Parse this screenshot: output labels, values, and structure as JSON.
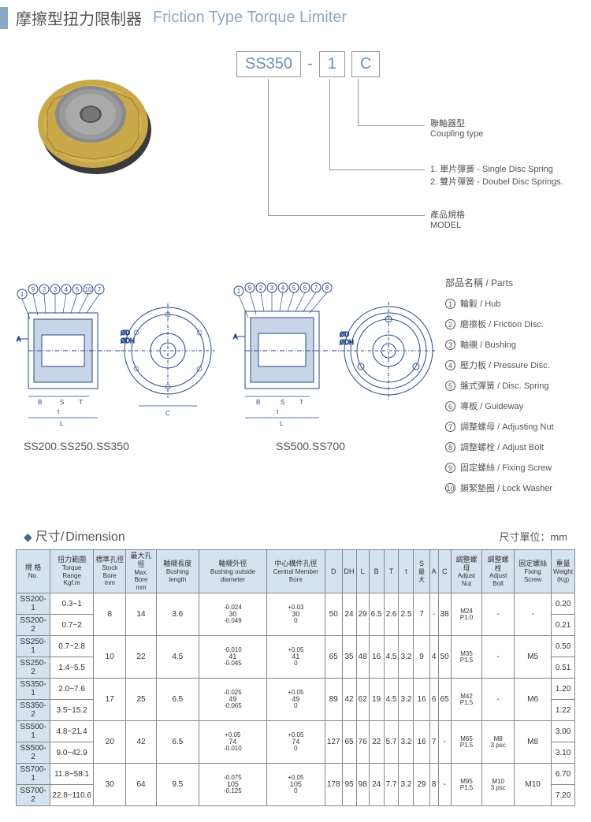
{
  "header": {
    "title_cn": "摩擦型扭力限制器",
    "title_en": "Friction Type Torque Limiter"
  },
  "model": {
    "part1": "SS350",
    "dash": "-",
    "part2": "1",
    "part3": "C",
    "label_coupling_cn": "聯軸器型",
    "label_coupling_en": "Coupling type",
    "label_spring_1": "1. 單片彈簧 - Single Disc Spring",
    "label_spring_2": "2. 雙片彈簧 - Doubel Disc Springs.",
    "label_model_cn": "產品規格",
    "label_model_en": "MODEL"
  },
  "diagrams": {
    "caption1": "SS200.SS250.SS350",
    "caption2": "SS500.SS700",
    "callouts1": [
      "1",
      "9",
      "2",
      "3",
      "4",
      "5",
      "10",
      "7"
    ],
    "callouts2": [
      "1",
      "9",
      "2",
      "3",
      "4",
      "5",
      "6",
      "7",
      "8"
    ]
  },
  "parts": {
    "title": "部品名稱 / Parts",
    "items": [
      {
        "num": "1",
        "cn": "輪轂",
        "en": "Hub"
      },
      {
        "num": "2",
        "cn": "磨擦板",
        "en": "Friction Disc."
      },
      {
        "num": "3",
        "cn": "軸襯",
        "en": "Bushing"
      },
      {
        "num": "4",
        "cn": "壓力板",
        "en": "Pressure Disc."
      },
      {
        "num": "5",
        "cn": "盤式彈簧",
        "en": "Disc. Spring"
      },
      {
        "num": "6",
        "cn": "導板",
        "en": "Guideway"
      },
      {
        "num": "7",
        "cn": "調整螺母",
        "en": "Adjusting Nut"
      },
      {
        "num": "8",
        "cn": "調整螺栓",
        "en": "Adjust Bolt"
      },
      {
        "num": "9",
        "cn": "固定螺絲",
        "en": "Fixing Screw"
      },
      {
        "num": "10",
        "cn": "鎖緊墊圈",
        "en": "Lock Washer"
      }
    ]
  },
  "dimension": {
    "bullet": "◆",
    "title_cn": "尺寸/",
    "title_en": "Dimension",
    "unit": "尺寸單位：mm",
    "columns": [
      {
        "cn": "規 格",
        "en": "No."
      },
      {
        "cn": "扭力範圍",
        "en": "Torque Range",
        "sub": "Kgf.m"
      },
      {
        "cn": "標準孔徑",
        "en": "Stock Bore",
        "sub": "mm"
      },
      {
        "cn": "最大孔徑",
        "en": "Max. Bore",
        "sub": "mm"
      },
      {
        "cn": "軸襯長度",
        "en": "Bushing length"
      },
      {
        "cn": "軸襯外徑",
        "en": "Bushing outside diameter"
      },
      {
        "cn": "中心構件孔徑",
        "en": "Central Member Bore"
      },
      {
        "cn": "D"
      },
      {
        "cn": "DH"
      },
      {
        "cn": "L"
      },
      {
        "cn": "B"
      },
      {
        "cn": "T"
      },
      {
        "cn": "t"
      },
      {
        "cn": "S",
        "sub": "最大"
      },
      {
        "cn": "A"
      },
      {
        "cn": "C"
      },
      {
        "cn": "調整螺母",
        "en": "Adjust Nut"
      },
      {
        "cn": "調整螺栓",
        "en": "Adjust Bolt"
      },
      {
        "cn": "固定螺絲",
        "en": "Fixing Screw"
      },
      {
        "cn": "重量",
        "en": "Weight",
        "sub": "(Kg)"
      }
    ],
    "rows": [
      {
        "no": "SS200-1",
        "tr": "0.3~1",
        "sb": "8",
        "mb": "14",
        "bl": "3.6",
        "bod_t": "-0.024",
        "bod_b": "30",
        "bod_b2": "-0.049",
        "cmb_t": "+0.03",
        "cmb_b": "30",
        "cmb_b2": "0",
        "D": "50",
        "DH": "24",
        "L": "29",
        "B": "6.5",
        "T": "2.6",
        "t": "2.5",
        "S": "7",
        "A": "-",
        "C": "38",
        "an_t": "M24",
        "an_b": "P1.0",
        "ab": "-",
        "fs": "-",
        "w": "0.20"
      },
      {
        "no": "SS200-2",
        "tr": "0.7~2",
        "w": "0.21"
      },
      {
        "no": "SS250-1",
        "tr": "0.7~2.8",
        "sb": "10",
        "mb": "22",
        "bl": "4.5",
        "bod_t": "-0.010",
        "bod_b": "41",
        "bod_b2": "-0.045",
        "cmb_t": "+0.05",
        "cmb_b": "41",
        "cmb_b2": "0",
        "D": "65",
        "DH": "35",
        "L": "48",
        "B": "16",
        "T": "4.5",
        "t": "3.2",
        "S": "9",
        "A": "4",
        "C": "50",
        "an_t": "M35",
        "an_b": "P1.5",
        "ab": "-",
        "fs": "M5",
        "w": "0.50"
      },
      {
        "no": "SS250-2",
        "tr": "1.4~5.5",
        "w": "0.51"
      },
      {
        "no": "SS350-1",
        "tr": "2.0~7.6",
        "sb": "17",
        "mb": "25",
        "bl": "6.5",
        "bod_t": "-0.025",
        "bod_b": "49",
        "bod_b2": "-0.065",
        "cmb_t": "+0.05",
        "cmb_b": "49",
        "cmb_b2": "0",
        "D": "89",
        "DH": "42",
        "L": "62",
        "B": "19",
        "T": "4.5",
        "t": "3.2",
        "S": "16",
        "A": "6",
        "C": "65",
        "an_t": "M42",
        "an_b": "P1.5",
        "ab": "-",
        "fs": "M6",
        "w": "1.20"
      },
      {
        "no": "SS350-2",
        "tr": "3.5~15.2",
        "w": "1.22"
      },
      {
        "no": "SS500-1",
        "tr": "4.8~21.4",
        "sb": "20",
        "mb": "42",
        "bl": "6.5",
        "bod_t": "+0.05",
        "bod_b": "74",
        "bod_b2": "-0.010",
        "cmb_t": "+0.05",
        "cmb_b": "74",
        "cmb_b2": "0",
        "D": "127",
        "DH": "65",
        "L": "76",
        "B": "22",
        "T": "5.7",
        "t": "3.2",
        "S": "16",
        "A": "7",
        "C": "-",
        "an_t": "M65",
        "an_b": "P1.5",
        "ab_t": "M8",
        "ab_b": "3 psc",
        "fs": "M8",
        "w": "3.00"
      },
      {
        "no": "SS500-2",
        "tr": "9.0~42.9",
        "w": "3.10"
      },
      {
        "no": "SS700-1",
        "tr": "11.8~58.1",
        "sb": "30",
        "mb": "64",
        "bl": "9.5",
        "bod_t": "-0.075",
        "bod_b": "105",
        "bod_b2": "-0.125",
        "cmb_t": "+0.05",
        "cmb_b": "105",
        "cmb_b2": "0",
        "D": "178",
        "DH": "95",
        "L": "98",
        "B": "24",
        "T": "7.7",
        "t": "3.2",
        "S": "29",
        "A": "8",
        "C": "-",
        "an_t": "M95",
        "an_b": "P1.5",
        "ab_t": "M10",
        "ab_b": "3 psc",
        "fs": "M10",
        "w": "6.70"
      },
      {
        "no": "SS700-2",
        "tr": "22.8~110.6",
        "w": "7.20"
      }
    ]
  },
  "colors": {
    "accent": "#8aa8c4",
    "header_bg": "#d5e3f0",
    "border": "#888"
  }
}
